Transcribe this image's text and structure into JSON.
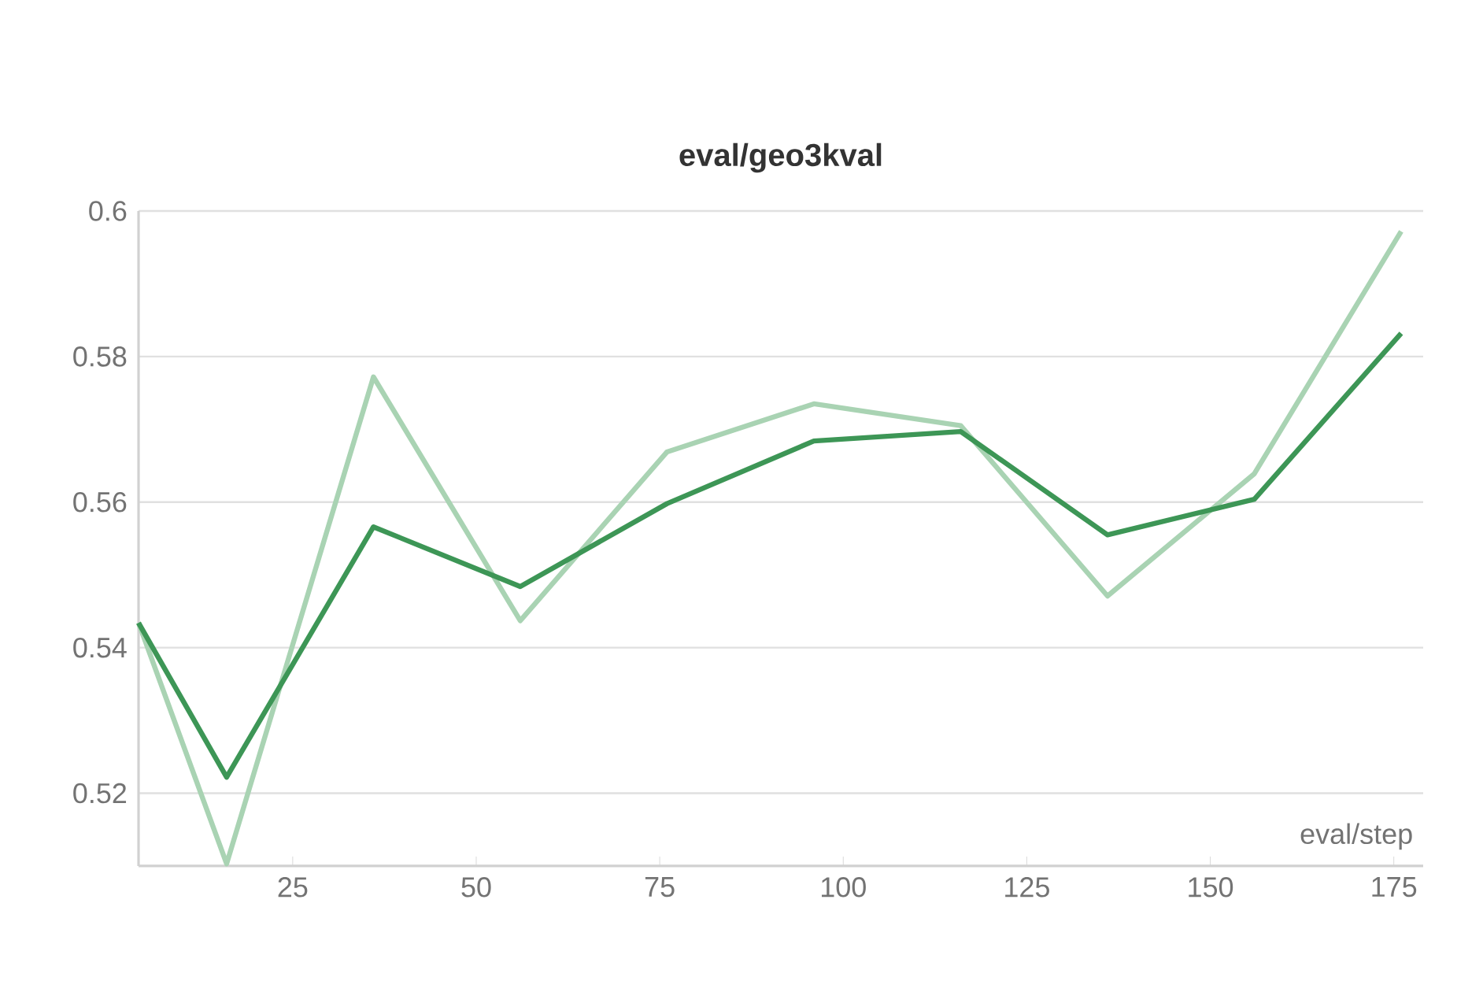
{
  "chart_data": {
    "type": "line",
    "title": "eval/geo3kval",
    "xlabel": "eval/step",
    "x": [
      4,
      16,
      36,
      56,
      76,
      96,
      116,
      136,
      156,
      176
    ],
    "series": [
      {
        "color": "#a9d3b3",
        "values": [
          0.5434,
          0.5103,
          0.5772,
          0.5437,
          0.5669,
          0.5735,
          0.5705,
          0.5471,
          0.5639,
          0.5972
        ]
      },
      {
        "color": "#3d9656",
        "values": [
          0.5434,
          0.5222,
          0.5566,
          0.5484,
          0.5598,
          0.5684,
          0.5697,
          0.5555,
          0.5604,
          0.5832
        ]
      }
    ],
    "xlim": [
      4,
      179
    ],
    "ylim": [
      0.51,
      0.6
    ],
    "xticks": [
      25,
      50,
      75,
      100,
      125,
      150,
      175
    ],
    "yticks": [
      0.52,
      0.54,
      0.56,
      0.58,
      0.6
    ],
    "grid": "y",
    "marker": "none",
    "line_style": "solid"
  }
}
